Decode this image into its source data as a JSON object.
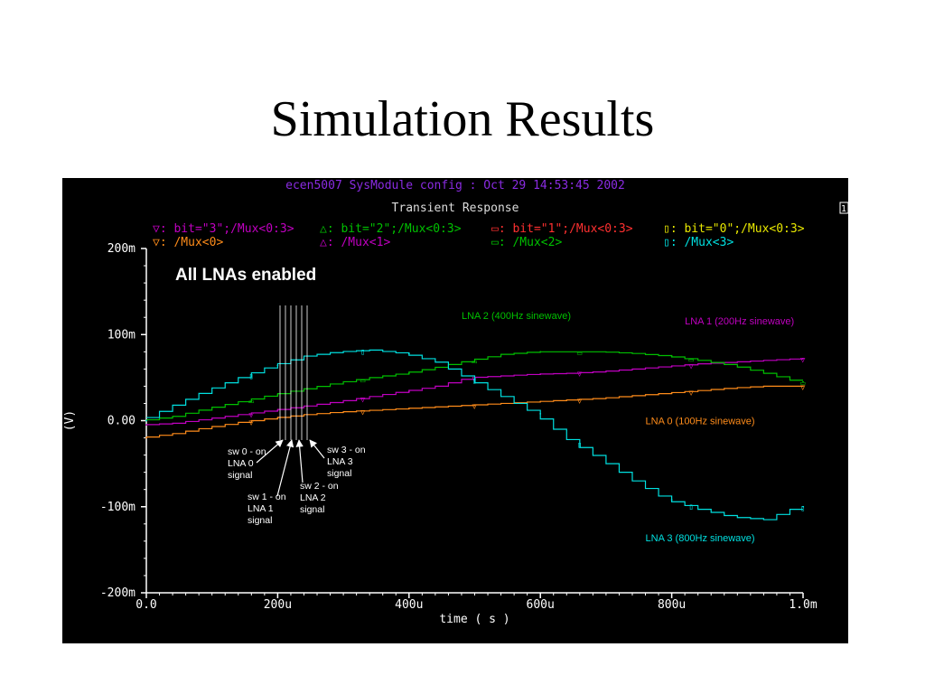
{
  "slide": {
    "title": "Simulation Results"
  },
  "window": {
    "header": "ecen5007 SysModule config : Oct 29 14:53:45 2002",
    "plot_title": "Transient Response",
    "corner_mark": "1"
  },
  "legend": {
    "rows": [
      [
        {
          "symbol": "▽",
          "text": "bit=\"3\";/Mux<0:3>",
          "color": "#c000c0"
        },
        {
          "symbol": "△",
          "text": "bit=\"2\";/Mux<0:3>",
          "color": "#00c000"
        },
        {
          "symbol": "▭",
          "text": "bit=\"1\";/Mux<0:3>",
          "color": "#ff3030"
        },
        {
          "symbol": "▯",
          "text": "bit=\"0\";/Mux<0:3>",
          "color": "#e8e800"
        }
      ],
      [
        {
          "symbol": "▽",
          "text": "/Mux<0>",
          "color": "#ff8c1a"
        },
        {
          "symbol": "△",
          "text": "/Mux<1>",
          "color": "#c000c0"
        },
        {
          "symbol": "▭",
          "text": "/Mux<2>",
          "color": "#00c000"
        },
        {
          "symbol": "▯",
          "text": "/Mux<3>",
          "color": "#00e0e0"
        }
      ]
    ]
  },
  "annotations": {
    "headline": "All LNAs enabled",
    "callouts": [
      {
        "lines": [
          "sw 0 - on",
          "LNA 0",
          "signal"
        ]
      },
      {
        "lines": [
          "sw 1 - on",
          "LNA 1",
          "signal"
        ]
      },
      {
        "lines": [
          "sw 2 - on",
          "LNA 2",
          "signal"
        ]
      },
      {
        "lines": [
          "sw 3 - on",
          "LNA 3",
          "signal"
        ]
      }
    ]
  },
  "chart_data": {
    "type": "line",
    "xlabel": "time ( s )",
    "ylabel": "(V)",
    "xlim": [
      0,
      0.001
    ],
    "ylim": [
      -0.2,
      0.2
    ],
    "x_ticks": [
      {
        "value": 0,
        "label": "0.0"
      },
      {
        "value": 0.0002,
        "label": "200u"
      },
      {
        "value": 0.0004,
        "label": "400u"
      },
      {
        "value": 0.0006,
        "label": "600u"
      },
      {
        "value": 0.0008,
        "label": "800u"
      },
      {
        "value": 0.001,
        "label": "1.0m"
      }
    ],
    "y_ticks": [
      {
        "value": 0.2,
        "label": "200m"
      },
      {
        "value": 0.1,
        "label": "100m"
      },
      {
        "value": 0,
        "label": "0.00"
      },
      {
        "value": -0.1,
        "label": "-100m"
      },
      {
        "value": -0.2,
        "label": "-200m"
      }
    ],
    "series": [
      {
        "name": "LNA 0 (100Hz sinewave)",
        "color": "#ff8c1a",
        "marker": "▽",
        "points": [
          [
            0,
            -0.02
          ],
          [
            5e-05,
            -0.015
          ],
          [
            0.0001,
            -0.008
          ],
          [
            0.00015,
            -0.002
          ],
          [
            0.0002,
            0.003
          ],
          [
            0.00025,
            0.007
          ],
          [
            0.0003,
            0.01
          ],
          [
            0.00035,
            0.012
          ],
          [
            0.0004,
            0.014
          ],
          [
            0.00045,
            0.016
          ],
          [
            0.0005,
            0.018
          ],
          [
            0.00055,
            0.02
          ],
          [
            0.0006,
            0.022
          ],
          [
            0.00065,
            0.024
          ],
          [
            0.0007,
            0.026
          ],
          [
            0.00075,
            0.029
          ],
          [
            0.0008,
            0.032
          ],
          [
            0.00085,
            0.035
          ],
          [
            0.0009,
            0.038
          ],
          [
            0.00095,
            0.04
          ],
          [
            0.001,
            0.04
          ]
        ]
      },
      {
        "name": "LNA 1 (200Hz sinewave)",
        "color": "#c000c0",
        "marker": "▽",
        "points": [
          [
            0,
            -0.005
          ],
          [
            5e-05,
            -0.003
          ],
          [
            0.0001,
            0.002
          ],
          [
            0.00015,
            0.007
          ],
          [
            0.0002,
            0.012
          ],
          [
            0.00025,
            0.017
          ],
          [
            0.0003,
            0.022
          ],
          [
            0.00035,
            0.028
          ],
          [
            0.0004,
            0.034
          ],
          [
            0.00045,
            0.04
          ],
          [
            0.0005,
            0.05
          ],
          [
            0.00055,
            0.052
          ],
          [
            0.0006,
            0.054
          ],
          [
            0.00065,
            0.055
          ],
          [
            0.0007,
            0.057
          ],
          [
            0.00075,
            0.06
          ],
          [
            0.0008,
            0.063
          ],
          [
            0.00085,
            0.066
          ],
          [
            0.0009,
            0.068
          ],
          [
            0.00095,
            0.07
          ],
          [
            0.001,
            0.072
          ]
        ]
      },
      {
        "name": "LNA 2 (400Hz sinewave)",
        "color": "#00c000",
        "marker": "▭",
        "points": [
          [
            0,
            0.0
          ],
          [
            5e-05,
            0.005
          ],
          [
            0.0001,
            0.014
          ],
          [
            0.00015,
            0.022
          ],
          [
            0.0002,
            0.03
          ],
          [
            0.00025,
            0.037
          ],
          [
            0.0003,
            0.044
          ],
          [
            0.00035,
            0.05
          ],
          [
            0.0004,
            0.055
          ],
          [
            0.00045,
            0.062
          ],
          [
            0.0005,
            0.07
          ],
          [
            0.00055,
            0.077
          ],
          [
            0.0006,
            0.08
          ],
          [
            0.00065,
            0.08
          ],
          [
            0.0007,
            0.08
          ],
          [
            0.00075,
            0.078
          ],
          [
            0.0008,
            0.075
          ],
          [
            0.00085,
            0.07
          ],
          [
            0.0009,
            0.064
          ],
          [
            0.00095,
            0.055
          ],
          [
            0.001,
            0.045
          ]
        ]
      },
      {
        "name": "LNA 3 (800Hz sinewave)",
        "color": "#00e0e0",
        "marker": "▯",
        "points": [
          [
            0,
            0.0
          ],
          [
            5e-05,
            0.018
          ],
          [
            0.0001,
            0.035
          ],
          [
            0.00015,
            0.05
          ],
          [
            0.0002,
            0.064
          ],
          [
            0.00025,
            0.075
          ],
          [
            0.0003,
            0.08
          ],
          [
            0.00035,
            0.082
          ],
          [
            0.0004,
            0.078
          ],
          [
            0.00045,
            0.068
          ],
          [
            0.0005,
            0.048
          ],
          [
            0.00055,
            0.028
          ],
          [
            0.0006,
            0.008
          ],
          [
            0.00065,
            -0.022
          ],
          [
            0.0007,
            -0.045
          ],
          [
            0.00075,
            -0.07
          ],
          [
            0.0008,
            -0.092
          ],
          [
            0.00085,
            -0.103
          ],
          [
            0.0009,
            -0.112
          ],
          [
            0.00095,
            -0.115
          ],
          [
            0.001,
            -0.1
          ]
        ]
      }
    ]
  }
}
